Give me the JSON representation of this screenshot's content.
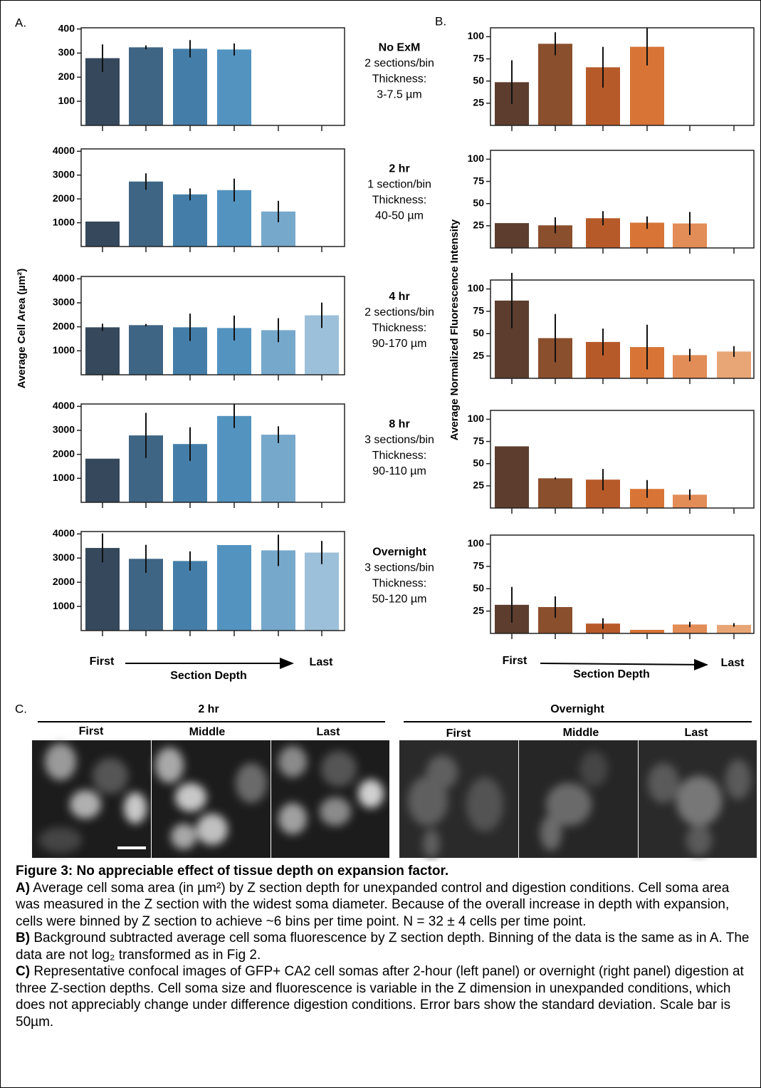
{
  "panel_a": {
    "label": "A.",
    "y_label": "Average Cell Area (µm²)",
    "x_start": "First",
    "x_end": "Last",
    "x_label": "Section Depth"
  },
  "panel_b": {
    "label": "B.",
    "y_label": "Average Normalized Fluorescence Intensity",
    "x_start": "First",
    "x_end": "Last",
    "x_label": "Section Depth"
  },
  "conditions": [
    {
      "name": "No ExM",
      "binning": "2 sections/bin",
      "thickness": "Thickness:",
      "range": "3-7.5 µm"
    },
    {
      "name": "2 hr",
      "binning": "1 section/bin",
      "thickness": "Thickness:",
      "range": "40-50 µm"
    },
    {
      "name": "4 hr",
      "binning": "2 sections/bin",
      "thickness": "Thickness:",
      "range": "90-170 µm"
    },
    {
      "name": "8 hr",
      "binning": "3 sections/bin",
      "thickness": "Thickness:",
      "range": "90-110 µm"
    },
    {
      "name": "Overnight",
      "binning": "3 sections/bin",
      "thickness": "Thickness:",
      "range": "50-120 µm"
    }
  ],
  "chart_data": [
    {
      "type": "bar",
      "values": [
        279,
        324,
        318,
        315,
        null,
        null
      ],
      "errors": [
        57,
        8,
        36,
        25,
        null,
        null
      ],
      "colors": [
        "#36495c",
        "#3f6584",
        "#447ea8",
        "#5393c0",
        "#76a8cc",
        "#9dc0da"
      ],
      "ylim": [
        0,
        405
      ],
      "yticks": [
        100,
        200,
        300,
        400
      ]
    },
    {
      "type": "bar",
      "values": [
        1050,
        2730,
        2190,
        2370,
        1470,
        null
      ],
      "errors": [
        null,
        345,
        250,
        480,
        450,
        null
      ],
      "colors": [
        "#36495c",
        "#3f6584",
        "#447ea8",
        "#5393c0",
        "#76a8cc",
        "#9dc0da"
      ],
      "ylim": [
        0,
        4100
      ],
      "yticks": [
        1000,
        2000,
        3000,
        4000
      ]
    },
    {
      "type": "bar",
      "values": [
        1980,
        2070,
        1980,
        1950,
        1860,
        2480
      ],
      "errors": [
        150,
        50,
        570,
        520,
        500,
        530
      ],
      "colors": [
        "#36495c",
        "#3f6584",
        "#447ea8",
        "#5393c0",
        "#76a8cc",
        "#9dc0da"
      ],
      "ylim": [
        0,
        4100
      ],
      "yticks": [
        1000,
        2000,
        3000,
        4000
      ]
    },
    {
      "type": "bar",
      "values": [
        1820,
        2790,
        2430,
        3600,
        2820,
        null
      ],
      "errors": [
        null,
        940,
        700,
        500,
        350,
        null
      ],
      "colors": [
        "#36495c",
        "#3f6584",
        "#447ea8",
        "#5393c0",
        "#76a8cc",
        "#9dc0da"
      ],
      "ylim": [
        0,
        4100
      ],
      "yticks": [
        1000,
        2000,
        3000,
        4000
      ]
    },
    {
      "type": "bar",
      "values": [
        3420,
        2970,
        2880,
        3540,
        3320,
        3230
      ],
      "errors": [
        600,
        580,
        400,
        null,
        650,
        480
      ],
      "colors": [
        "#36495c",
        "#3f6584",
        "#447ea8",
        "#5393c0",
        "#76a8cc",
        "#9dc0da"
      ],
      "ylim": [
        0,
        4100
      ],
      "yticks": [
        1000,
        2000,
        3000,
        4000
      ]
    },
    {
      "type": "bar",
      "values": [
        48.7,
        92,
        65.5,
        88.6,
        null,
        null
      ],
      "errors": [
        24.7,
        13,
        23,
        21,
        null,
        null
      ],
      "colors": [
        "#5c3d2e",
        "#8a4f2d",
        "#b75a2a",
        "#d77436",
        "#e28c57",
        "#e8a575"
      ],
      "ylim": [
        0,
        110
      ],
      "yticks": [
        25,
        50,
        75,
        100
      ]
    },
    {
      "type": "bar",
      "values": [
        28,
        25.5,
        33.5,
        28.5,
        27.6,
        null
      ],
      "errors": [
        null,
        9,
        8,
        7,
        13,
        null
      ],
      "colors": [
        "#5c3d2e",
        "#8a4f2d",
        "#b75a2a",
        "#d77436",
        "#e28c57",
        "#e8a575"
      ],
      "ylim": [
        0,
        110
      ],
      "yticks": [
        25,
        50,
        75,
        100
      ]
    },
    {
      "type": "bar",
      "values": [
        87,
        45,
        40.7,
        35,
        26,
        30
      ],
      "errors": [
        31,
        27,
        15,
        25,
        7,
        6
      ],
      "colors": [
        "#5c3d2e",
        "#8a4f2d",
        "#b75a2a",
        "#d77436",
        "#e28c57",
        "#e8a575"
      ],
      "ylim": [
        0,
        110
      ],
      "yticks": [
        25,
        50,
        75,
        100
      ]
    },
    {
      "type": "bar",
      "values": [
        69.5,
        33.5,
        32,
        21.5,
        15,
        null
      ],
      "errors": [
        null,
        1,
        12,
        10,
        6,
        null
      ],
      "colors": [
        "#5c3d2e",
        "#8a4f2d",
        "#b75a2a",
        "#d77436",
        "#e28c57",
        "#e8a575"
      ],
      "ylim": [
        0,
        110
      ],
      "yticks": [
        25,
        50,
        75,
        100
      ]
    },
    {
      "type": "bar",
      "values": [
        32,
        29.5,
        11,
        4,
        10,
        9.5
      ],
      "errors": [
        20,
        12,
        6,
        null,
        3,
        2
      ],
      "colors": [
        "#5c3d2e",
        "#8a4f2d",
        "#b75a2a",
        "#d77436",
        "#e28c57",
        "#e8a575"
      ],
      "ylim": [
        0,
        110
      ],
      "yticks": [
        25,
        50,
        75,
        100
      ]
    }
  ],
  "panel_c": {
    "label": "C.",
    "groups": [
      {
        "title": "2 hr",
        "columns": [
          "First",
          "Middle",
          "Last"
        ]
      },
      {
        "title": "Overnight",
        "columns": [
          "First",
          "Middle",
          "Last"
        ]
      }
    ]
  },
  "caption": {
    "title": "Figure 3: No appreciable effect of tissue depth on expansion factor.",
    "paragraphs": [
      {
        "lead": "A)",
        "text": "Average cell soma area (in µm²) by Z section depth for unexpanded control and digestion conditions. Cell soma area was measured in the Z section with the widest soma diameter. Because of the overall increase in depth with expansion, cells were binned by Z section to achieve ~6 bins per time point. N = 32 ± 4 cells per time point."
      },
      {
        "lead": "B)",
        "text": "Background subtracted average cell soma fluorescence by Z section depth. Binning of the data is the same as in A. The data are not log₂ transformed as in Fig 2."
      },
      {
        "lead": "C)",
        "text": "Representative confocal images of GFP+ CA2 cell somas after 2-hour (left panel) or overnight (right panel) digestion at three Z-section depths. Cell soma size and fluorescence is variable in the Z dimension in unexpanded conditions, which does not appreciably change under difference digestion conditions. Error bars show the standard deviation. Scale bar is 50µm."
      }
    ]
  }
}
